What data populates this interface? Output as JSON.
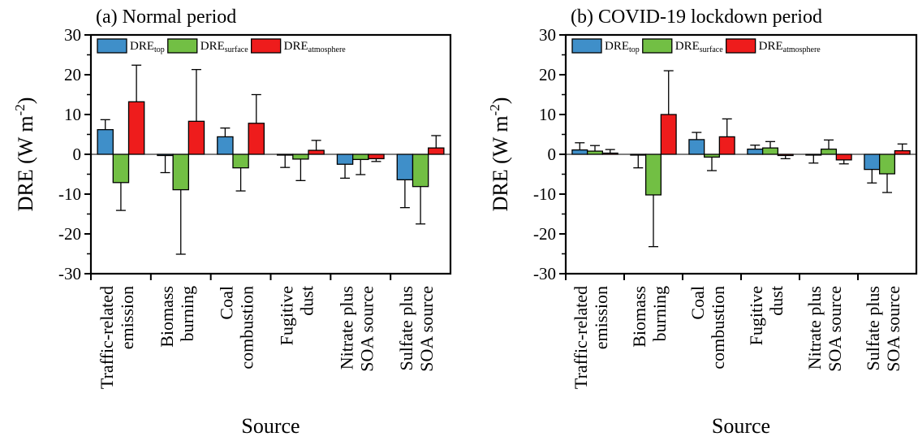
{
  "chart_data": [
    {
      "type": "bar",
      "title": "(a) Normal period",
      "ylabel": [
        "DRE (W m",
        "-2",
        ")"
      ],
      "xlabel": "Source",
      "categories": [
        [
          "Traffic-related",
          "emission"
        ],
        [
          "Biomass",
          "burning"
        ],
        [
          "Coal",
          "combustion"
        ],
        [
          "Fugitive",
          "dust"
        ],
        [
          "Nitrate plus",
          "SOA source"
        ],
        [
          "Sulfate plus",
          "SOA source"
        ]
      ],
      "series": [
        {
          "name": "DRE",
          "subscript": "top",
          "color": "#3f8fc9",
          "values": [
            6.2,
            -0.3,
            4.4,
            -0.2,
            -2.5,
            -6.4
          ],
          "errors": [
            2.5,
            4.3,
            2.2,
            3.1,
            3.5,
            7
          ]
        },
        {
          "name": "DRE",
          "subscript": "surface",
          "color": "#72bf44",
          "values": [
            -7.1,
            -8.9,
            -3.4,
            -1.2,
            -1.3,
            -8.1
          ],
          "errors": [
            7,
            16.2,
            5.8,
            5.4,
            3.8,
            9.4
          ]
        },
        {
          "name": "DRE",
          "subscript": "atmosphere",
          "color": "#ee1c1c",
          "values": [
            13.2,
            8.3,
            7.8,
            1.0,
            -1.1,
            1.6
          ],
          "errors": [
            9.2,
            13,
            7.2,
            2.5,
            0.7,
            3.1
          ]
        }
      ],
      "ylim": [
        -30,
        30
      ],
      "yticks": [
        -30,
        -20,
        -10,
        0,
        10,
        20,
        30
      ],
      "legend": "upper left"
    },
    {
      "type": "bar",
      "title": "(b) COVID-19 lockdown period",
      "ylabel": [
        "DRE (W m",
        "-2",
        ")"
      ],
      "xlabel": "Source",
      "categories": [
        [
          "Traffic-related",
          "emission"
        ],
        [
          "Biomass",
          "burning"
        ],
        [
          "Coal",
          "combustion"
        ],
        [
          "Fugitive",
          "dust"
        ],
        [
          "Nitrate plus",
          "SOA source"
        ],
        [
          "Sulfate plus",
          "SOA source"
        ]
      ],
      "series": [
        {
          "name": "DRE",
          "subscript": "top",
          "color": "#3f8fc9",
          "values": [
            1.1,
            -0.2,
            3.7,
            1.3,
            -0.2,
            -3.8
          ],
          "errors": [
            1.8,
            3.2,
            1.8,
            1,
            2,
            3.4
          ]
        },
        {
          "name": "DRE",
          "subscript": "surface",
          "color": "#72bf44",
          "values": [
            0.8,
            -10.2,
            -0.7,
            1.6,
            1.3,
            -4.9
          ],
          "errors": [
            1.4,
            13,
            3.4,
            1.6,
            2.3,
            4.7
          ]
        },
        {
          "name": "DRE",
          "subscript": "atmosphere",
          "color": "#ee1c1c",
          "values": [
            0.3,
            10,
            4.4,
            -0.3,
            -1.4,
            0.9
          ],
          "errors": [
            0.9,
            11,
            4.5,
            0.8,
            1,
            1.7
          ]
        }
      ],
      "ylim": [
        -30,
        30
      ],
      "yticks": [
        -30,
        -20,
        -10,
        0,
        10,
        20,
        30
      ],
      "legend": "upper left"
    }
  ]
}
